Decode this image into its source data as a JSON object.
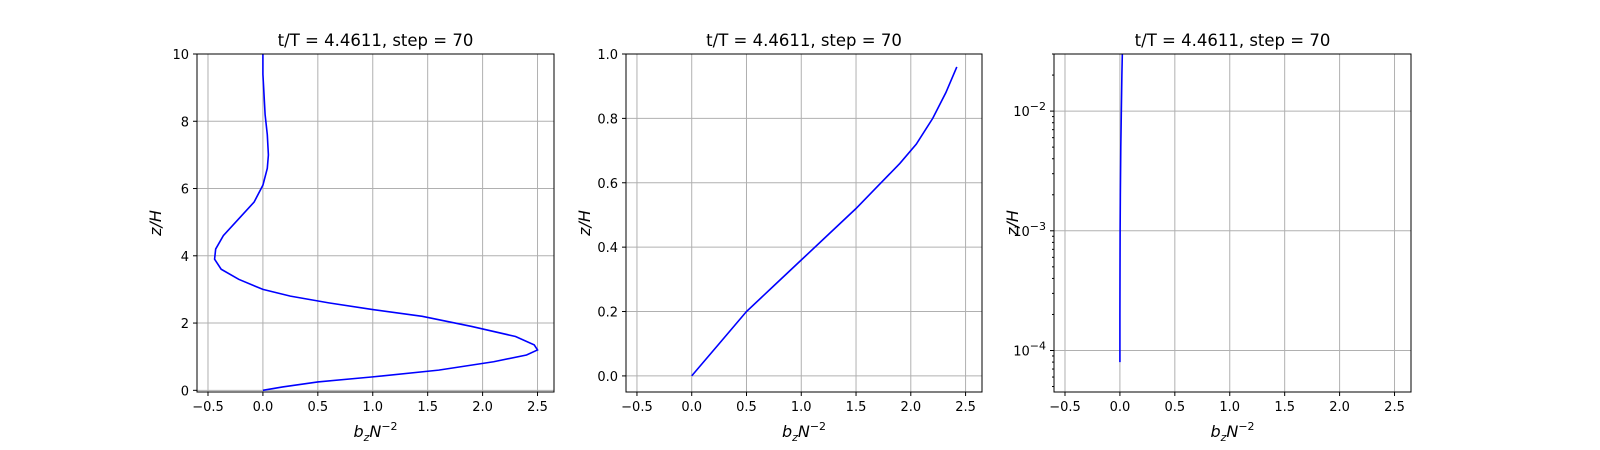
{
  "colors": {
    "line": "#0000ff",
    "grid": "#b0b0b0",
    "frame": "#000000"
  },
  "chart_data": [
    {
      "type": "line",
      "title": "t/T = 4.4611, step = 70",
      "xlabel_base": "b",
      "xlabel_sub": "z",
      "xlabel_mid": "N",
      "xlabel_sup": "−2",
      "ylabel": "z/H",
      "grid": true,
      "yscale": "linear",
      "xlim": [
        -0.6,
        2.65
      ],
      "ylim": [
        -0.05,
        10
      ],
      "xticks": [
        -0.5,
        0,
        0.5,
        1,
        1.5,
        2,
        2.5
      ],
      "xtick_labels": [
        "−0.5",
        "0.0",
        "0.5",
        "1.0",
        "1.5",
        "2.0",
        "2.5"
      ],
      "yticks": [
        0,
        2,
        4,
        6,
        8,
        10
      ],
      "ytick_labels": [
        "0",
        "2",
        "4",
        "6",
        "8",
        "10"
      ],
      "series": [
        {
          "x": [
            0,
            0.18,
            0.5,
            1.0,
            1.6,
            2.1,
            2.4,
            2.5,
            2.47,
            2.3,
            1.9,
            1.45,
            1.0,
            0.6,
            0.25,
            0.0,
            -0.22,
            -0.38,
            -0.44,
            -0.43,
            -0.36,
            -0.22,
            -0.08,
            0.0,
            0.04,
            0.05,
            0.04,
            0.02,
            0.01,
            0.0,
            0.0
          ],
          "y": [
            0,
            0.1,
            0.25,
            0.4,
            0.6,
            0.85,
            1.05,
            1.2,
            1.35,
            1.6,
            1.9,
            2.2,
            2.4,
            2.6,
            2.8,
            3.0,
            3.3,
            3.6,
            3.9,
            4.2,
            4.6,
            5.1,
            5.6,
            6.1,
            6.6,
            7.0,
            7.6,
            8.2,
            8.8,
            9.4,
            10.0
          ]
        }
      ]
    },
    {
      "type": "line",
      "title": "t/T = 4.4611, step = 70",
      "xlabel_base": "b",
      "xlabel_sub": "z",
      "xlabel_mid": "N",
      "xlabel_sup": "−2",
      "ylabel": "z/H",
      "grid": true,
      "yscale": "linear",
      "xlim": [
        -0.6,
        2.65
      ],
      "ylim": [
        -0.05,
        1.0
      ],
      "xticks": [
        -0.5,
        0,
        0.5,
        1,
        1.5,
        2,
        2.5
      ],
      "xtick_labels": [
        "−0.5",
        "0.0",
        "0.5",
        "1.0",
        "1.5",
        "2.0",
        "2.5"
      ],
      "yticks": [
        0,
        0.2,
        0.4,
        0.6,
        0.8,
        1.0
      ],
      "ytick_labels": [
        "0.0",
        "0.2",
        "0.4",
        "0.6",
        "0.8",
        "1.0"
      ],
      "series": [
        {
          "x": [
            0,
            0.1,
            0.25,
            0.5,
            0.75,
            1.0,
            1.25,
            1.5,
            1.7,
            1.9,
            2.05,
            2.2,
            2.32,
            2.42
          ],
          "y": [
            0,
            0.04,
            0.1,
            0.2,
            0.28,
            0.36,
            0.44,
            0.52,
            0.59,
            0.66,
            0.72,
            0.8,
            0.88,
            0.96
          ]
        }
      ]
    },
    {
      "type": "line",
      "title": "t/T = 4.4611, step = 70",
      "xlabel_base": "b",
      "xlabel_sub": "z",
      "xlabel_mid": "N",
      "xlabel_sup": "−2",
      "ylabel": "z/H",
      "grid": true,
      "yscale": "log",
      "xlim": [
        -0.6,
        2.65
      ],
      "ylim": [
        4.5e-05,
        0.03
      ],
      "xticks": [
        -0.5,
        0,
        0.5,
        1,
        1.5,
        2,
        2.5
      ],
      "xtick_labels": [
        "−0.5",
        "0.0",
        "0.5",
        "1.0",
        "1.5",
        "2.0",
        "2.5"
      ],
      "yticks": [
        0.0001,
        0.001,
        0.01
      ],
      "ytick_labels_base": [
        "10",
        "10",
        "10"
      ],
      "ytick_labels_exp": [
        "−4",
        "−3",
        "−2"
      ],
      "series": [
        {
          "x": [
            0,
            0.0,
            0.001,
            0.002,
            0.004,
            0.008,
            0.013,
            0.018,
            0.022
          ],
          "y": [
            8e-05,
            0.0002,
            0.0005,
            0.001,
            0.002,
            0.005,
            0.01,
            0.02,
            0.03
          ]
        }
      ]
    }
  ]
}
